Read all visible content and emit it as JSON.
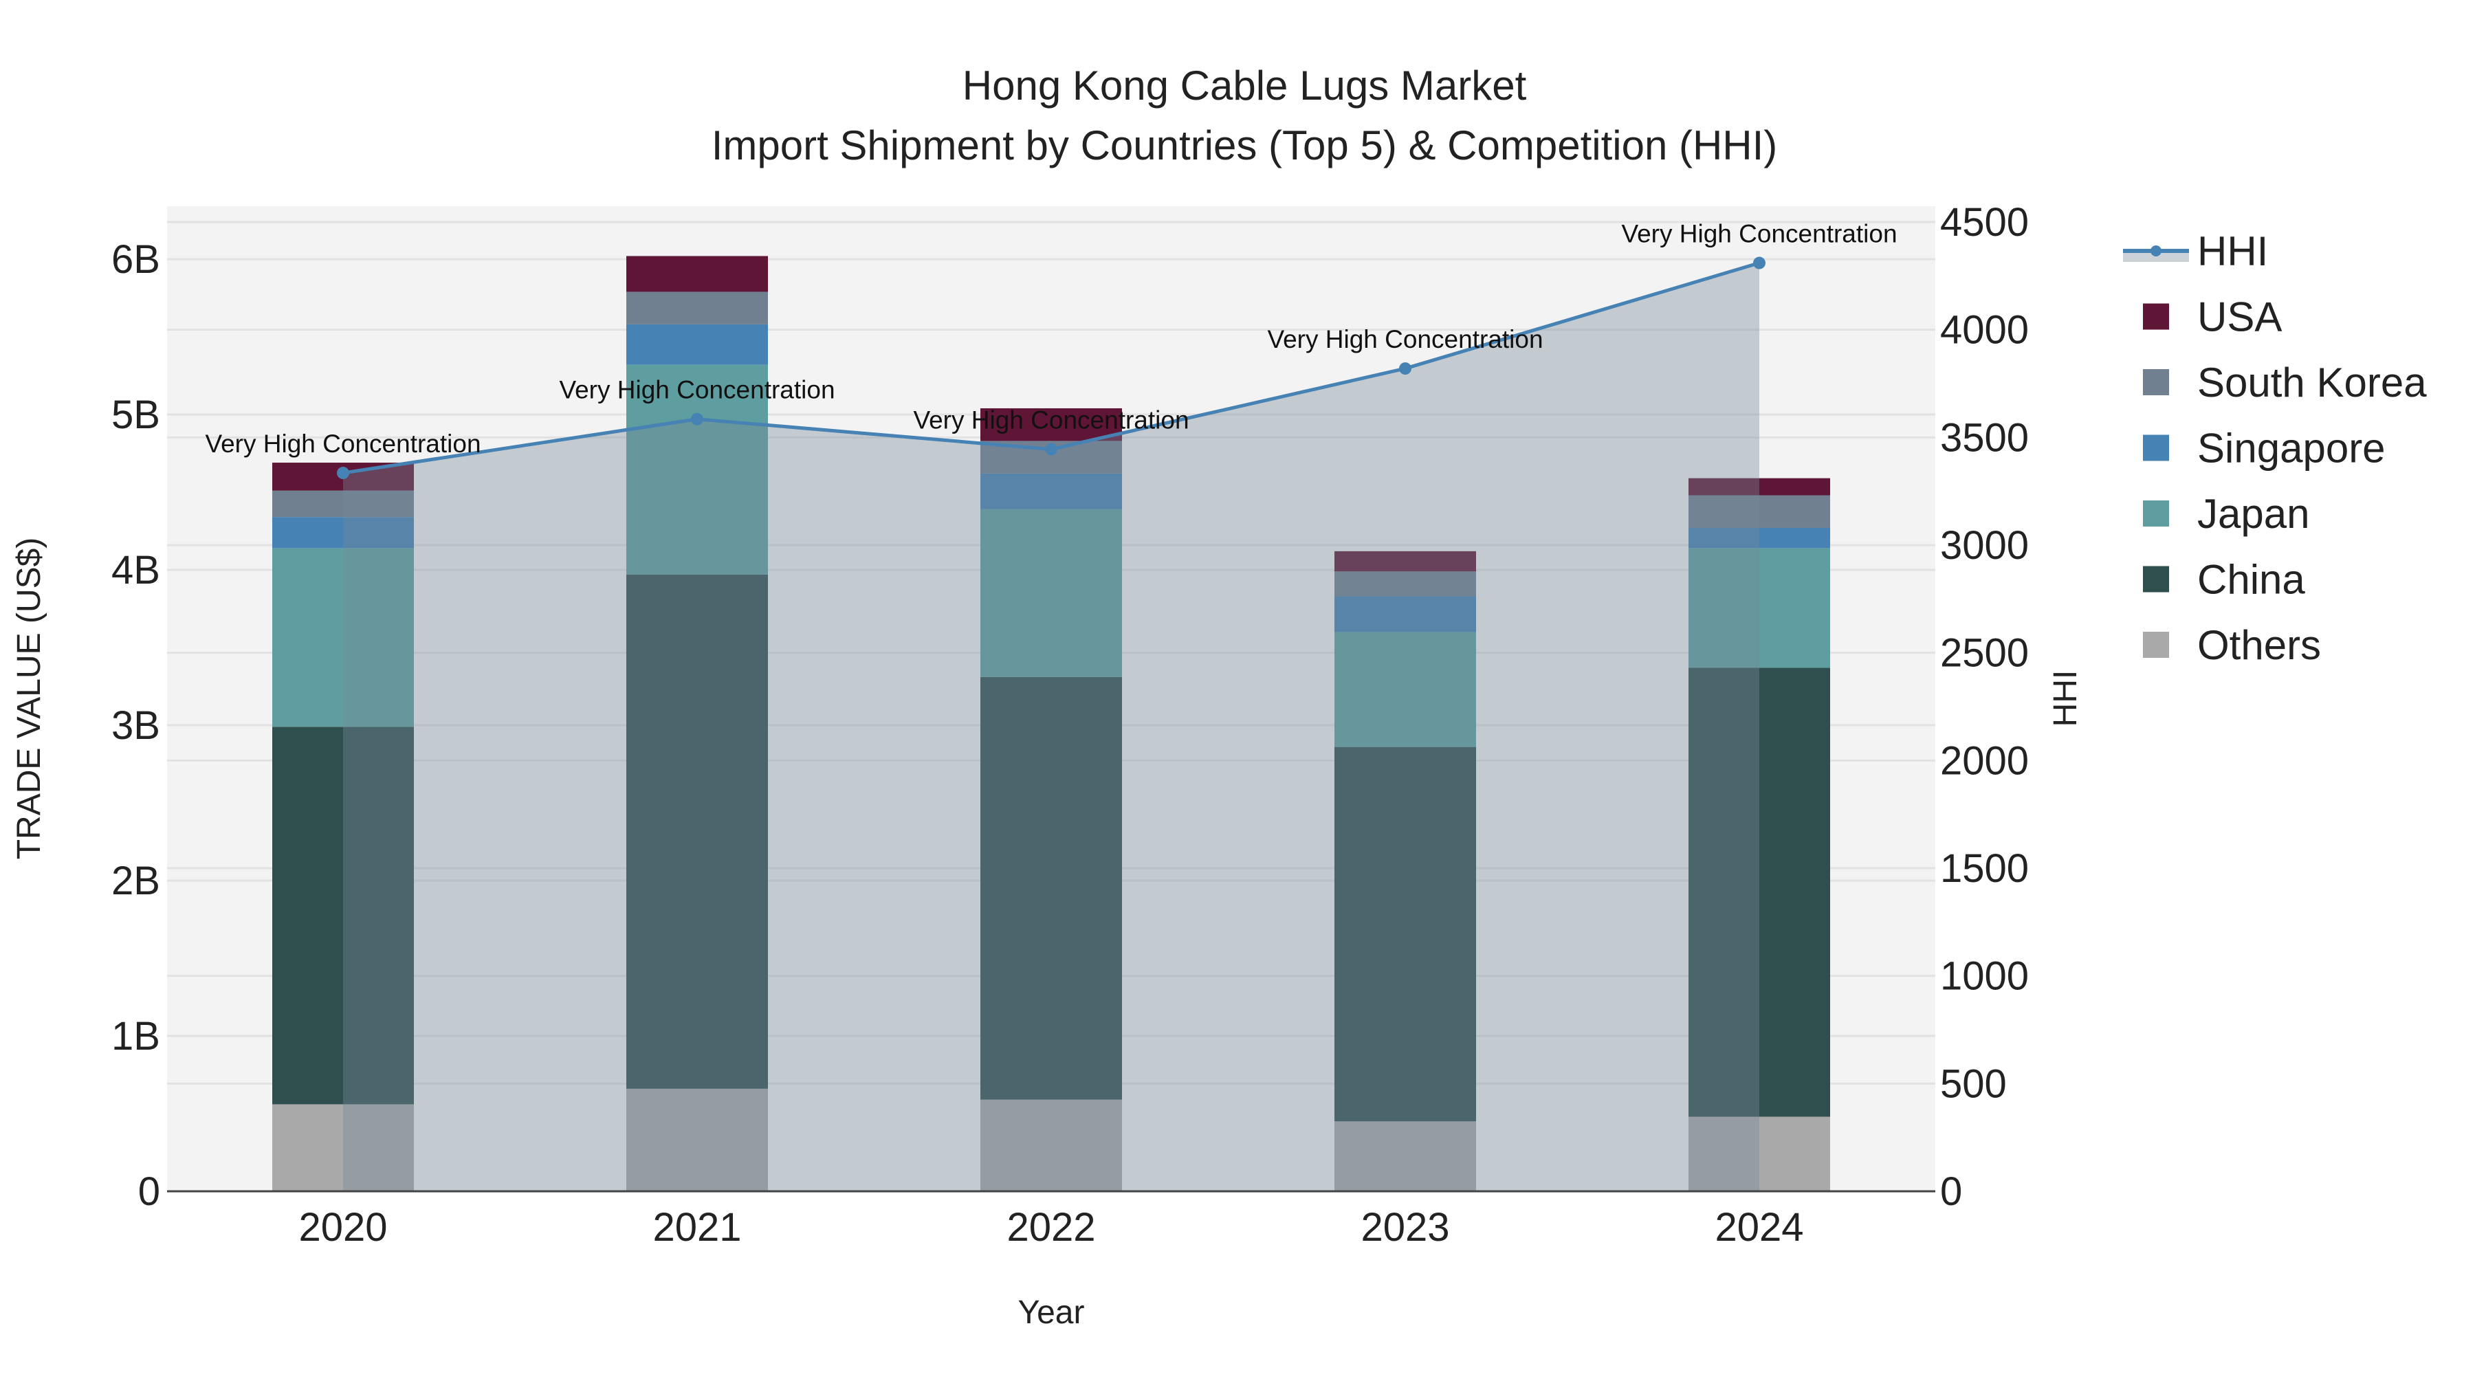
{
  "chart_data": {
    "type": "bar",
    "title": "Hong Kong Cable Lugs Market",
    "subtitle": "Import Shipment by Countries (Top 5) & Competition (HHI)",
    "xlabel": "Year",
    "ylabel": "TRADE VALUE (US$)",
    "y2label": "HHI",
    "categories": [
      "2020",
      "2021",
      "2022",
      "2023",
      "2024"
    ],
    "ylim": [
      0,
      6.3
    ],
    "y_ticks": [
      0,
      1,
      2,
      3,
      4,
      5,
      6
    ],
    "y_tick_labels": [
      "0",
      "1B",
      "2B",
      "3B",
      "4B",
      "5B",
      "6B"
    ],
    "y2lim": [
      0,
      4600
    ],
    "y2_ticks": [
      0,
      500,
      1000,
      1500,
      2000,
      2500,
      3000,
      3500,
      4000,
      4500
    ],
    "y2_tick_labels": [
      "0",
      "500",
      "1000",
      "1500",
      "2000",
      "2500",
      "3000",
      "3500",
      "4000",
      "4500"
    ],
    "units": "billion US$",
    "series": [
      {
        "name": "Others",
        "color": "#a9a9a9",
        "values": [
          0.56,
          0.66,
          0.59,
          0.45,
          0.48
        ]
      },
      {
        "name": "China",
        "color": "#2f4f4f",
        "values": [
          2.43,
          3.31,
          2.72,
          2.41,
          2.89
        ]
      },
      {
        "name": "Japan",
        "color": "#5f9ea0",
        "values": [
          1.15,
          1.35,
          1.08,
          0.74,
          0.77
        ]
      },
      {
        "name": "Singapore",
        "color": "#4682b4",
        "values": [
          0.2,
          0.26,
          0.23,
          0.23,
          0.13
        ]
      },
      {
        "name": "South Korea",
        "color": "#708090",
        "values": [
          0.17,
          0.21,
          0.21,
          0.16,
          0.21
        ]
      },
      {
        "name": "USA",
        "color": "#5f1535",
        "values": [
          0.18,
          0.23,
          0.21,
          0.13,
          0.11
        ]
      }
    ],
    "hhi": {
      "name": "HHI",
      "color": "#4682b4",
      "values": [
        3335,
        3585,
        3445,
        3820,
        4310
      ],
      "annotations": [
        "Very High Concentration",
        "Very High Concentration",
        "Very High Concentration",
        "Very High Concentration",
        "Very High Concentration"
      ]
    },
    "legend": [
      "HHI",
      "USA",
      "South Korea",
      "Singapore",
      "Japan",
      "China",
      "Others"
    ],
    "legend_placement": "right",
    "grid": true
  }
}
